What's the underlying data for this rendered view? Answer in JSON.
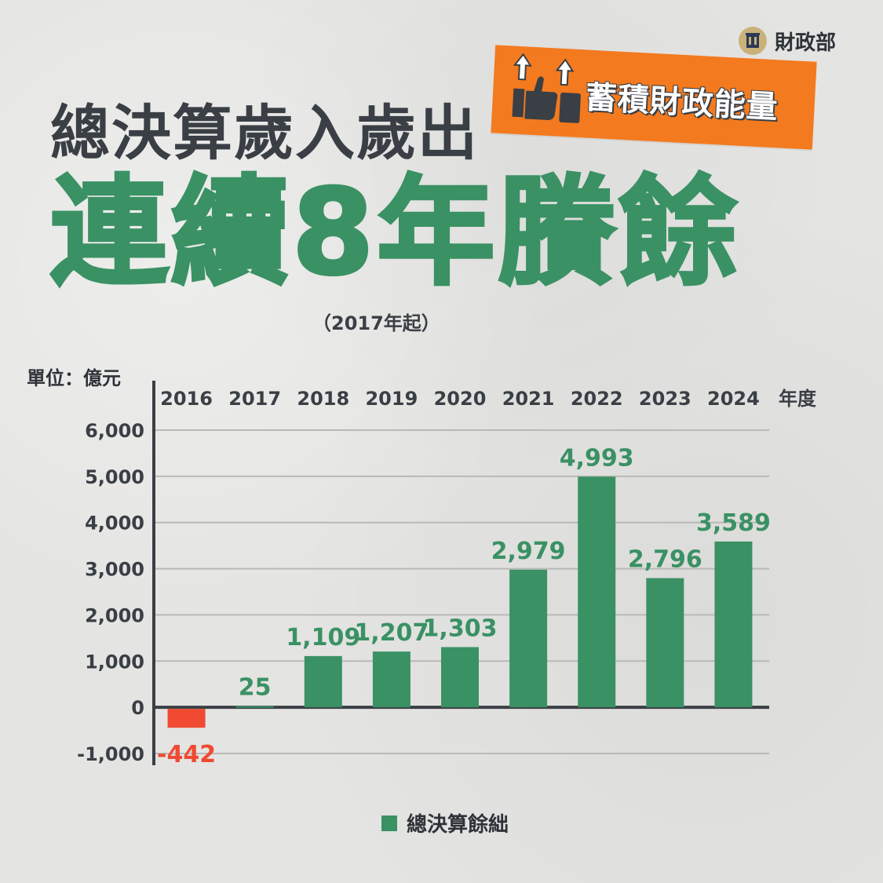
{
  "ministry": {
    "name": "財政部",
    "icon": "ministry-seal-icon"
  },
  "headline": {
    "line1": "總決算歲入歲出",
    "line2": "連續8年賸餘",
    "note": "（2017年起）"
  },
  "badge": {
    "text": "蓄積財政能量",
    "icon": "thumbs-up-icon",
    "color": "#f47a1f"
  },
  "colors": {
    "positive": "#3a9164",
    "negative": "#f04a33",
    "text": "#3a3f45"
  },
  "chart_data": {
    "type": "bar",
    "unit_label": "單位：億元",
    "x_axis_unit": "年度",
    "categories": [
      "2016",
      "2017",
      "2018",
      "2019",
      "2020",
      "2021",
      "2022",
      "2023",
      "2024"
    ],
    "values": [
      -442,
      25,
      1109,
      1207,
      1303,
      2979,
      4993,
      2796,
      3589
    ],
    "value_labels": [
      "-442",
      "25",
      "1,109",
      "1,207",
      "1,303",
      "2,979",
      "4,993",
      "2,796",
      "3,589"
    ],
    "y_ticks": [
      6000,
      5000,
      4000,
      3000,
      2000,
      1000,
      0,
      -1000
    ],
    "y_tick_labels": [
      "6,000",
      "5,000",
      "4,000",
      "3,000",
      "2,000",
      "1,000",
      "0",
      "-1,000"
    ],
    "ylim": [
      -1000,
      6000
    ],
    "legend": "總決算餘絀",
    "grid": true,
    "category_axis_position": "top"
  }
}
